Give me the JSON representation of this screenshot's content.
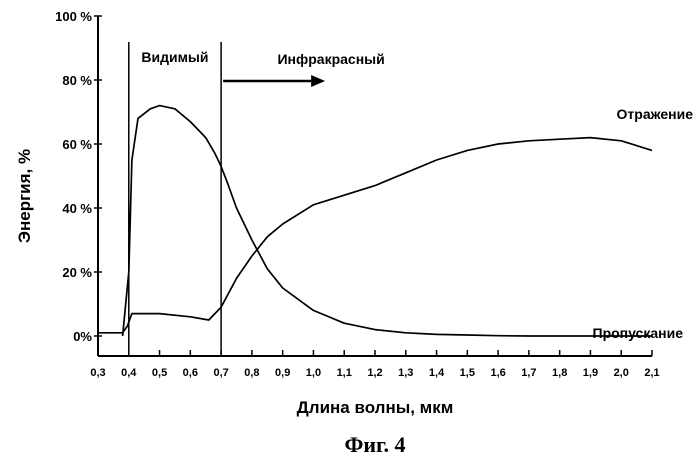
{
  "chart_data": {
    "type": "line",
    "xlabel": "Длина волны, мкм",
    "ylabel": "Энергия, %",
    "xlim": [
      0.3,
      2.1
    ],
    "ylim": [
      0,
      100
    ],
    "x_ticks": [
      "0,3",
      "0,4",
      "0,5",
      "0,6",
      "0,7",
      "0,8",
      "0,9",
      "1,0",
      "1,1",
      "1,2",
      "1,3",
      "1,4",
      "1,5",
      "1,6",
      "1,7",
      "1,8",
      "1,9",
      "2,0",
      "2,1"
    ],
    "y_ticks": [
      "0%",
      "20 %",
      "40 %",
      "60 %",
      "80 %",
      "100 %"
    ],
    "grid": false,
    "legend": "none",
    "regions": [
      {
        "label": "Видимый",
        "x_start": 0.4,
        "x_end": 0.7
      },
      {
        "label": "Инфракрасный",
        "x_start": 0.7
      }
    ],
    "series": [
      {
        "name": "Отражение",
        "x": [
          0.3,
          0.38,
          0.395,
          0.41,
          0.5,
          0.6,
          0.66,
          0.7,
          0.75,
          0.8,
          0.85,
          0.9,
          1.0,
          1.1,
          1.2,
          1.3,
          1.4,
          1.5,
          1.6,
          1.7,
          1.8,
          1.9,
          2.0,
          2.1
        ],
        "y": [
          1,
          1,
          3,
          7,
          7,
          6,
          5,
          9,
          18,
          25,
          31,
          35,
          41,
          44,
          47,
          51,
          55,
          58,
          60,
          61,
          61.5,
          62,
          61,
          58
        ]
      },
      {
        "name": "Пропускание",
        "x": [
          0.38,
          0.4,
          0.41,
          0.43,
          0.47,
          0.5,
          0.55,
          0.6,
          0.65,
          0.68,
          0.7,
          0.72,
          0.75,
          0.8,
          0.85,
          0.9,
          1.0,
          1.1,
          1.2,
          1.3,
          1.4,
          1.5,
          1.6,
          1.7,
          1.8,
          1.9,
          2.0,
          2.1
        ],
        "y": [
          0,
          20,
          55,
          68,
          71,
          72,
          71,
          67,
          62,
          57,
          53,
          48,
          40,
          30,
          21,
          15,
          8,
          4,
          2,
          1,
          0.5,
          0.3,
          0.1,
          0,
          0,
          0,
          0,
          0
        ]
      }
    ]
  },
  "figure_caption": "Фиг. 4"
}
